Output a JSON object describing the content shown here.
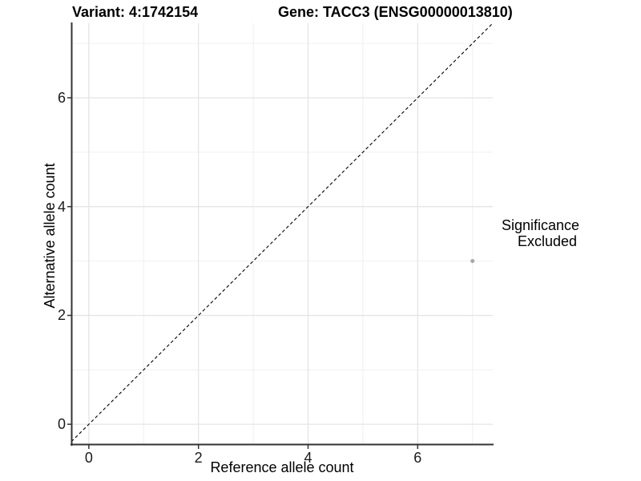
{
  "header": {
    "title_left": "Variant: 4:1742154",
    "title_right": "Gene: TACC3 (ENSG00000013810)"
  },
  "chart_data": {
    "type": "scatter",
    "xlabel": "Reference allele count",
    "ylabel": "Alternative allele count",
    "xlim": [
      -0.32,
      7.37
    ],
    "ylim": [
      -0.38,
      7.37
    ],
    "x_ticks": [
      0,
      2,
      4,
      6
    ],
    "y_ticks": [
      0,
      2,
      4,
      6
    ],
    "minor_ticks": [
      1,
      3,
      5,
      7
    ],
    "grid": true,
    "identity_line": {
      "style": "dashed",
      "equation": "y = x",
      "color": "#000000"
    },
    "series": [
      {
        "name": "Excluded",
        "color": "#a6a6a6",
        "point_radius": 2.5,
        "points": [
          {
            "x": 7,
            "y": 3
          }
        ]
      }
    ],
    "legend": {
      "title": "Significance",
      "position": "right",
      "items": [
        {
          "label": "Excluded",
          "color": "#a6a6a6"
        }
      ]
    },
    "colors": {
      "major_grid": "#e3e3e3",
      "minor_grid": "#f0f0f0",
      "axis_line": "#333333",
      "tick_mark": "#333333"
    }
  }
}
